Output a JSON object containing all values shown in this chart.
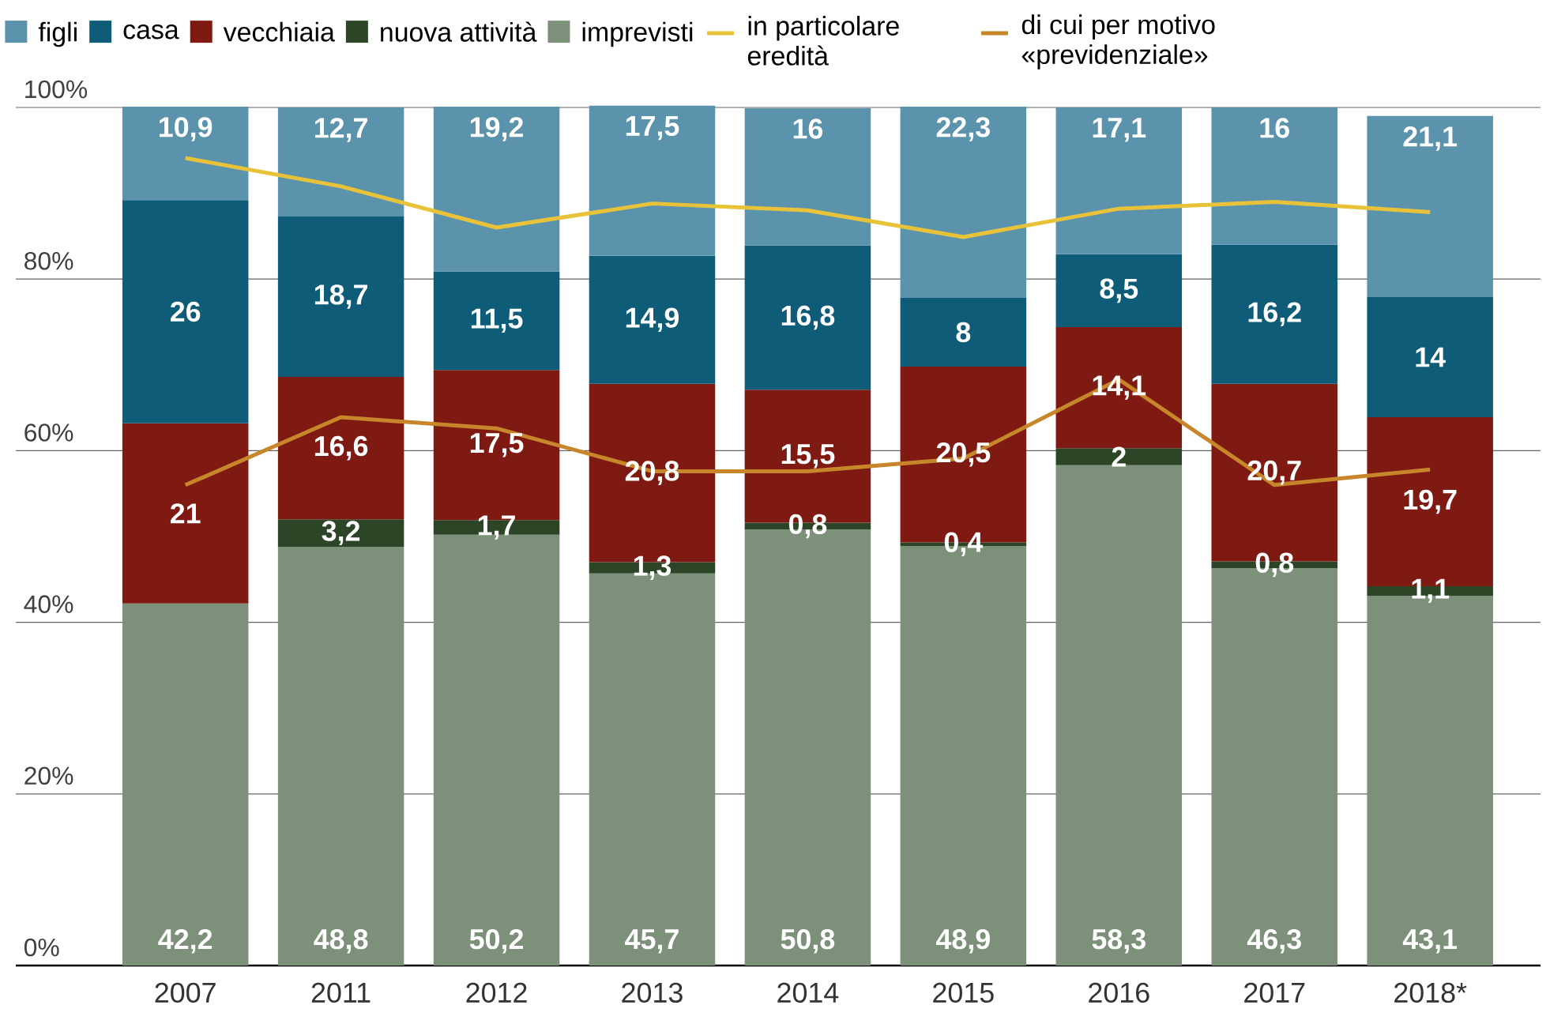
{
  "chart_data": {
    "type": "bar",
    "stacked": true,
    "categories": [
      "2007",
      "2011",
      "2012",
      "2013",
      "2014",
      "2015",
      "2016",
      "2017",
      "2018*"
    ],
    "series": [
      {
        "name": "imprevisti",
        "color": "#7d917a",
        "values": [
          42.2,
          48.8,
          50.2,
          45.7,
          50.8,
          48.9,
          58.3,
          46.3,
          43.1
        ],
        "value_labels": [
          "42,2",
          "48,8",
          "50,2",
          "45,7",
          "50,8",
          "48,9",
          "58,3",
          "46,3",
          "43,1"
        ]
      },
      {
        "name": "nuova attività",
        "color": "#2c4526",
        "values": [
          null,
          3.2,
          1.7,
          1.3,
          0.8,
          0.4,
          2,
          0.8,
          1.1
        ],
        "value_labels": [
          null,
          "3,2",
          "1,7",
          "1,3",
          "0,8",
          "0,4",
          "2",
          "0,8",
          "1,1"
        ]
      },
      {
        "name": "vecchiaia",
        "color": "#7f1a12",
        "values": [
          21,
          16.6,
          17.5,
          20.8,
          15.5,
          20.5,
          14.1,
          20.7,
          19.7
        ],
        "value_labels": [
          "21",
          "16,6",
          "17,5",
          "20,8",
          "15,5",
          "20,5",
          "14,1",
          "20,7",
          "19,7"
        ]
      },
      {
        "name": "casa",
        "color": "#0e5c78",
        "values": [
          26,
          18.7,
          11.5,
          14.9,
          16.8,
          8,
          8.5,
          16.2,
          14
        ],
        "value_labels": [
          "26",
          "18,7",
          "11,5",
          "14,9",
          "16,8",
          "8",
          "8,5",
          "16,2",
          "14"
        ]
      },
      {
        "name": "figli",
        "color": "#5b93ad",
        "values": [
          10.9,
          12.7,
          19.2,
          17.5,
          16,
          22.3,
          17.1,
          16,
          21.1
        ],
        "value_labels": [
          "10,9",
          "12,7",
          "19,2",
          "17,5",
          "16",
          "22,3",
          "17,1",
          "16",
          "21,1"
        ]
      },
      {
        "name": "in particolare eredità",
        "type": "line",
        "color": "#e8c33a",
        "values": [
          94.1,
          90.8,
          86.0,
          88.8,
          88.0,
          84.9,
          88.2,
          89.0,
          87.8
        ]
      },
      {
        "name": "di cui per motivo «previdenziale»",
        "type": "line",
        "color": "#c8862a",
        "values": [
          56.0,
          63.9,
          62.6,
          57.6,
          57.6,
          59.1,
          68.3,
          56.0,
          57.8
        ]
      }
    ],
    "ylim": [
      0,
      100
    ],
    "yticks": [
      {
        "value": 0,
        "label": "0%"
      },
      {
        "value": 20,
        "label": "20%"
      },
      {
        "value": 40,
        "label": "40%"
      },
      {
        "value": 60,
        "label": "60%"
      },
      {
        "value": 80,
        "label": "80%"
      },
      {
        "value": 100,
        "label": "100%"
      }
    ],
    "grid": "y",
    "legend": "top",
    "marker": "none",
    "line_style": "solid"
  }
}
